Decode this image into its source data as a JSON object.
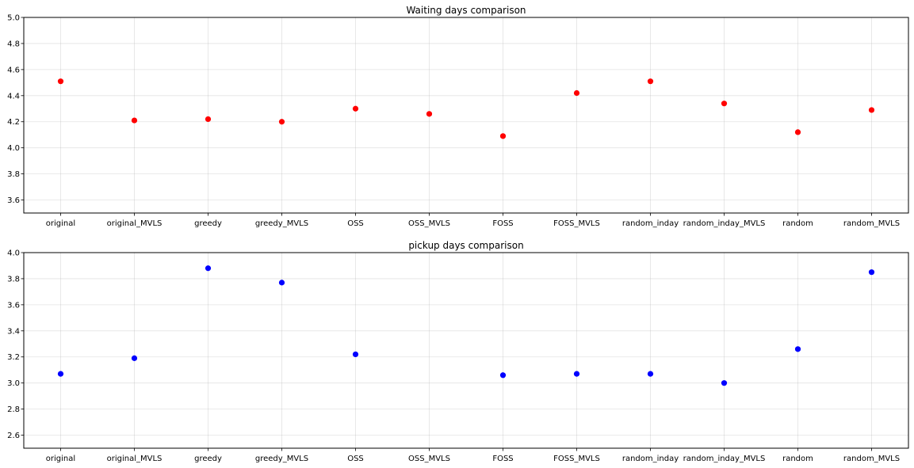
{
  "chart_data": [
    {
      "type": "scatter",
      "title": "Waiting days comparison",
      "xlabel": "",
      "ylabel": "",
      "categories": [
        "original",
        "original_MVLS",
        "greedy",
        "greedy_MVLS",
        "OSS",
        "OSS_MVLS",
        "FOSS",
        "FOSS_MVLS",
        "random_inday",
        "random_inday_MVLS",
        "random",
        "random_MVLS"
      ],
      "series": [
        {
          "color": "#ff0000",
          "points": [
            {
              "x": "original",
              "y": 4.51
            },
            {
              "x": "original_MVLS",
              "y": 4.21
            },
            {
              "x": "greedy",
              "y": 4.22
            },
            {
              "x": "greedy_MVLS",
              "y": 4.2
            },
            {
              "x": "OSS",
              "y": 4.3
            },
            {
              "x": "OSS_MVLS",
              "y": 4.26
            },
            {
              "x": "FOSS",
              "y": 4.09
            },
            {
              "x": "FOSS_MVLS",
              "y": 4.42
            },
            {
              "x": "random_inday",
              "y": 4.51
            },
            {
              "x": "random_inday_MVLS",
              "y": 4.34
            },
            {
              "x": "random",
              "y": 4.12
            },
            {
              "x": "random_MVLS",
              "y": 4.29
            }
          ]
        }
      ],
      "ylim": [
        3.5,
        5.0
      ],
      "yticks": [
        "3.6",
        "3.8",
        "4.0",
        "4.2",
        "4.4",
        "4.6",
        "4.8",
        "5.0"
      ],
      "grid": true,
      "legend": "none"
    },
    {
      "type": "scatter",
      "title": "pickup days comparison",
      "xlabel": "",
      "ylabel": "",
      "categories": [
        "original",
        "original_MVLS",
        "greedy",
        "greedy_MVLS",
        "OSS",
        "OSS_MVLS",
        "FOSS",
        "FOSS_MVLS",
        "random_inday",
        "random_inday_MVLS",
        "random",
        "random_MVLS"
      ],
      "series": [
        {
          "color": "#0000ff",
          "points": [
            {
              "x": "original",
              "y": 3.07
            },
            {
              "x": "original_MVLS",
              "y": 3.19
            },
            {
              "x": "greedy",
              "y": 3.88
            },
            {
              "x": "greedy_MVLS",
              "y": 3.77
            },
            {
              "x": "OSS",
              "y": 3.22
            },
            {
              "x": "FOSS",
              "y": 3.06
            },
            {
              "x": "FOSS_MVLS",
              "y": 3.07
            },
            {
              "x": "random_inday",
              "y": 3.07
            },
            {
              "x": "random_inday_MVLS",
              "y": 3.0
            },
            {
              "x": "random",
              "y": 3.26
            },
            {
              "x": "random_MVLS",
              "y": 3.85
            }
          ]
        }
      ],
      "ylim": [
        2.5,
        4.0
      ],
      "yticks": [
        "2.6",
        "2.8",
        "3.0",
        "3.2",
        "3.4",
        "3.6",
        "3.8",
        "4.0"
      ],
      "grid": true,
      "legend": "none"
    }
  ]
}
